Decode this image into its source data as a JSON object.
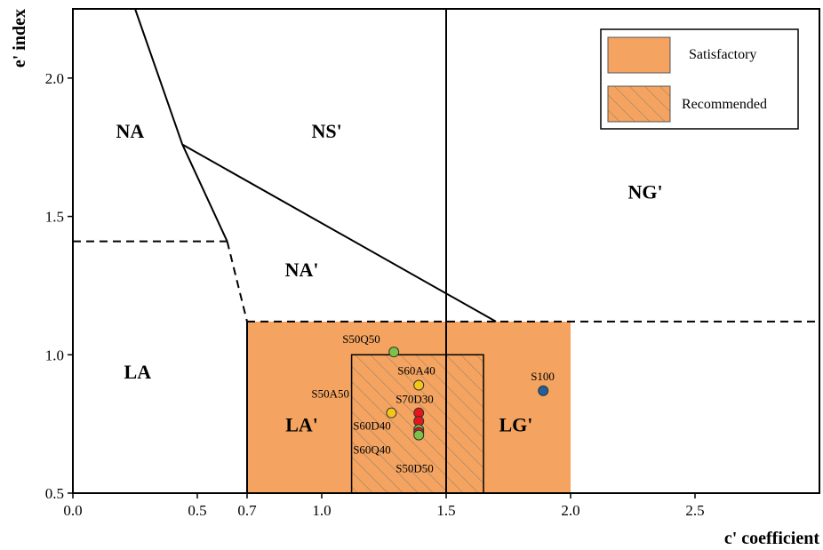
{
  "chart_data": {
    "type": "scatter",
    "xlabel": "c' coefficient",
    "ylabel": "e' index",
    "xlim": [
      0.0,
      3.0
    ],
    "ylim": [
      0.5,
      2.25
    ],
    "x_ticks": [
      {
        "value": 0.0,
        "label": "0.0"
      },
      {
        "value": 0.5,
        "label": "0.5"
      },
      {
        "value": 0.7,
        "label": "0.7"
      },
      {
        "value": 1.0,
        "label": "1.0"
      },
      {
        "value": 1.5,
        "label": "1.5"
      },
      {
        "value": 2.0,
        "label": "2.0"
      },
      {
        "value": 2.5,
        "label": "2.5"
      }
    ],
    "y_ticks": [
      {
        "value": 0.5,
        "label": "0.5"
      },
      {
        "value": 1.0,
        "label": "1.0"
      },
      {
        "value": 1.5,
        "label": "1.5"
      },
      {
        "value": 2.0,
        "label": "2.0"
      }
    ],
    "grid": false,
    "legend_position": "top-right",
    "legend": [
      {
        "label": "Satisfactory",
        "style": "solid",
        "color": "#F4A460"
      },
      {
        "label": "Recommended",
        "style": "hatched",
        "color": "#F4A460"
      }
    ],
    "satisfactory_region": {
      "x": [
        0.7,
        2.0
      ],
      "y": [
        0.5,
        1.12
      ]
    },
    "recommended_region": {
      "x": [
        1.12,
        1.65
      ],
      "y": [
        0.5,
        1.0
      ]
    },
    "boundaries": [
      {
        "style": "solid",
        "points": [
          [
            0.25,
            2.25
          ],
          [
            0.44,
            1.76
          ],
          [
            0.62,
            1.41
          ]
        ]
      },
      {
        "style": "solid",
        "points": [
          [
            0.44,
            1.76
          ],
          [
            1.7,
            1.12
          ]
        ]
      },
      {
        "style": "solid",
        "points": [
          [
            1.5,
            2.25
          ],
          [
            1.5,
            0.5
          ]
        ]
      },
      {
        "style": "solid",
        "points": [
          [
            0.7,
            1.12
          ],
          [
            0.7,
            0.5
          ]
        ]
      },
      {
        "style": "dashed",
        "points": [
          [
            0.0,
            1.41
          ],
          [
            0.62,
            1.41
          ]
        ]
      },
      {
        "style": "dashed",
        "points": [
          [
            0.62,
            1.41
          ],
          [
            0.7,
            1.12
          ]
        ]
      },
      {
        "style": "dashed",
        "points": [
          [
            0.7,
            1.12
          ],
          [
            3.0,
            1.12
          ]
        ]
      }
    ],
    "regions": [
      {
        "label": "NA",
        "x": 0.23,
        "y": 1.8
      },
      {
        "label": "NS'",
        "x": 1.02,
        "y": 1.8
      },
      {
        "label": "NG'",
        "x": 2.3,
        "y": 1.58
      },
      {
        "label": "NA'",
        "x": 0.92,
        "y": 1.3
      },
      {
        "label": "LA",
        "x": 0.26,
        "y": 0.93
      },
      {
        "label": "LA'",
        "x": 0.92,
        "y": 0.74
      },
      {
        "label": "LG'",
        "x": 1.78,
        "y": 0.74
      }
    ],
    "points": [
      {
        "label": "S50Q50",
        "x": 1.29,
        "y": 1.01,
        "color": "#7CC148",
        "label_dx": -58,
        "label_dy": -10
      },
      {
        "label": "S60A40",
        "x": 1.39,
        "y": 0.89,
        "color": "#F5C518",
        "label_dx": -24,
        "label_dy": -12
      },
      {
        "label": "S50A50",
        "x": 1.28,
        "y": 0.79,
        "color": "#F5C518",
        "label_dx": -90,
        "label_dy": -17
      },
      {
        "label": "S70D30",
        "x": 1.39,
        "y": 0.79,
        "color": "#E8141C",
        "label_dx": -26,
        "label_dy": -11
      },
      {
        "label": "",
        "x": 1.39,
        "y": 0.76,
        "color": "#E8141C"
      },
      {
        "label": "S60D40",
        "x": 1.39,
        "y": 0.73,
        "color": "#7CC148",
        "label_dx": -74,
        "label_dy": 0
      },
      {
        "label": "S60Q40",
        "x": 1.39,
        "y": 0.72,
        "color": "#E8141C",
        "label_dx": -74,
        "label_dy": 24
      },
      {
        "label": "S50D50",
        "x": 1.39,
        "y": 0.71,
        "color": "#7CC148",
        "label_dx": -26,
        "label_dy": 42
      },
      {
        "label": "S100",
        "x": 1.89,
        "y": 0.87,
        "color": "#1F5F9E",
        "label_dx": -14,
        "label_dy": -12
      }
    ]
  }
}
